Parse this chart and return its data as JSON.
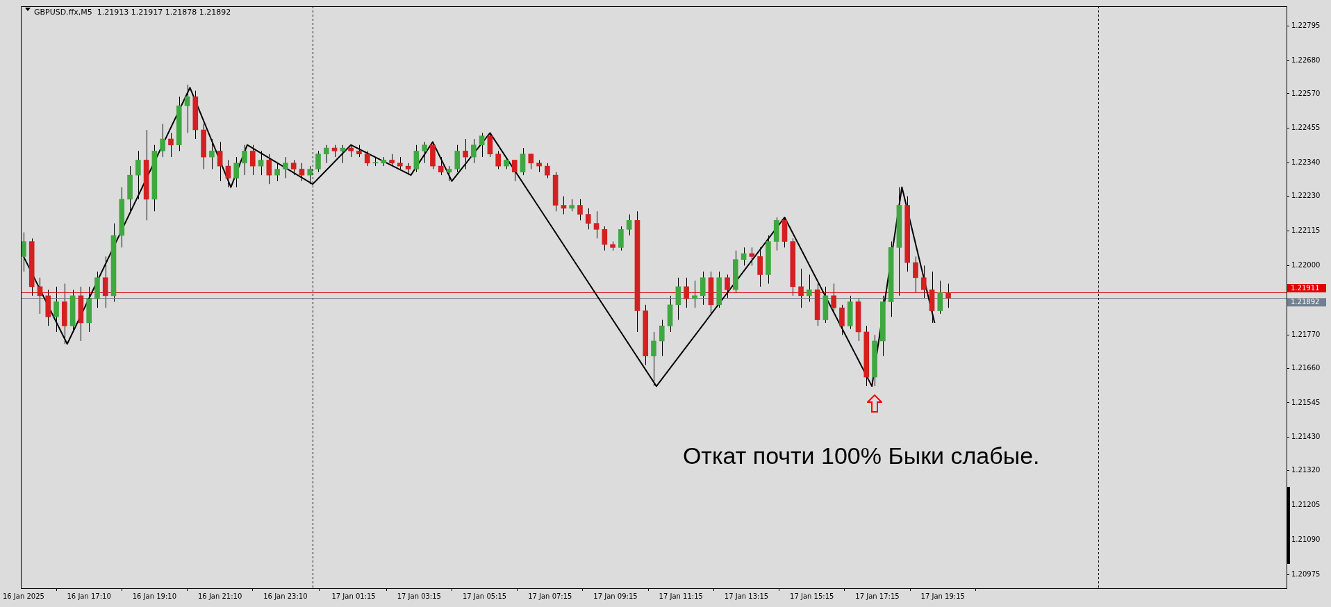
{
  "chart_data": {
    "type": "candlestick",
    "title": "GBPUSD.ffx,M5  1.21913 1.21917 1.21878 1.21892",
    "annotations": [
      "Откат почти 100% Быки слабые."
    ],
    "x": [
      "2025-01-16T15:10",
      "2025-01-16T15:25",
      "2025-01-16T15:40",
      "2025-01-16T15:55",
      "2025-01-16T16:10",
      "2025-01-16T16:25",
      "2025-01-16T16:40",
      "2025-01-16T16:55",
      "2025-01-16T17:10",
      "2025-01-16T17:25",
      "2025-01-16T17:40",
      "2025-01-16T17:55",
      "2025-01-16T18:10",
      "2025-01-16T18:25",
      "2025-01-16T18:40",
      "2025-01-16T18:55",
      "2025-01-16T19:10",
      "2025-01-16T19:25",
      "2025-01-16T19:40",
      "2025-01-16T19:55",
      "2025-01-16T20:10",
      "2025-01-16T20:25",
      "2025-01-16T20:40",
      "2025-01-16T20:55",
      "2025-01-16T21:10",
      "2025-01-16T21:25",
      "2025-01-16T21:40",
      "2025-01-16T21:55",
      "2025-01-16T22:10",
      "2025-01-16T22:25",
      "2025-01-16T22:40",
      "2025-01-16T22:55",
      "2025-01-16T23:10",
      "2025-01-16T23:25",
      "2025-01-16T23:40",
      "2025-01-16T23:55",
      "2025-01-17T00:10",
      "2025-01-17T00:25",
      "2025-01-17T00:40",
      "2025-01-17T00:55",
      "2025-01-17T01:10",
      "2025-01-17T01:25",
      "2025-01-17T01:40",
      "2025-01-17T01:55",
      "2025-01-17T02:10",
      "2025-01-17T02:25",
      "2025-01-17T02:40",
      "2025-01-17T02:55",
      "2025-01-17T03:10",
      "2025-01-17T03:25",
      "2025-01-17T03:40",
      "2025-01-17T03:55",
      "2025-01-17T04:10",
      "2025-01-17T04:25",
      "2025-01-17T04:40",
      "2025-01-17T04:55",
      "2025-01-17T05:10",
      "2025-01-17T05:25",
      "2025-01-17T05:40",
      "2025-01-17T05:55",
      "2025-01-17T06:10",
      "2025-01-17T06:25",
      "2025-01-17T06:40",
      "2025-01-17T06:55",
      "2025-01-17T07:10",
      "2025-01-17T07:25",
      "2025-01-17T07:40",
      "2025-01-17T07:55",
      "2025-01-17T08:10",
      "2025-01-17T08:25",
      "2025-01-17T08:40",
      "2025-01-17T08:55",
      "2025-01-17T09:10",
      "2025-01-17T09:25",
      "2025-01-17T09:40",
      "2025-01-17T09:55",
      "2025-01-17T10:10",
      "2025-01-17T10:25",
      "2025-01-17T10:40",
      "2025-01-17T10:55",
      "2025-01-17T11:10",
      "2025-01-17T11:25",
      "2025-01-17T11:40",
      "2025-01-17T11:55",
      "2025-01-17T12:10",
      "2025-01-17T12:25",
      "2025-01-17T12:40",
      "2025-01-17T12:55",
      "2025-01-17T13:10",
      "2025-01-17T13:25",
      "2025-01-17T13:40",
      "2025-01-17T13:55",
      "2025-01-17T14:10",
      "2025-01-17T14:25",
      "2025-01-17T14:40",
      "2025-01-17T14:55",
      "2025-01-17T15:10",
      "2025-01-17T15:25",
      "2025-01-17T15:40",
      "2025-01-17T15:55",
      "2025-01-17T16:10",
      "2025-01-17T16:25",
      "2025-01-17T16:40",
      "2025-01-17T16:55",
      "2025-01-17T17:10",
      "2025-01-17T17:25",
      "2025-01-17T17:40",
      "2025-01-17T17:55",
      "2025-01-17T18:10",
      "2025-01-17T18:25",
      "2025-01-17T18:40",
      "2025-01-17T18:55",
      "2025-01-17T19:10",
      "2025-01-17T19:25"
    ],
    "ohlc": [
      [
        1.2203,
        1.2211,
        1.2198,
        1.2208
      ],
      [
        1.2208,
        1.2209,
        1.219,
        1.2193
      ],
      [
        1.2193,
        1.2196,
        1.2184,
        1.219
      ],
      [
        1.219,
        1.2192,
        1.218,
        1.2183
      ],
      [
        1.2183,
        1.2193,
        1.2178,
        1.2188
      ],
      [
        1.2188,
        1.2194,
        1.2174,
        1.218
      ],
      [
        1.218,
        1.2192,
        1.2178,
        1.219
      ],
      [
        1.219,
        1.2193,
        1.2175,
        1.2181
      ],
      [
        1.2181,
        1.2193,
        1.2178,
        1.2189
      ],
      [
        1.2189,
        1.2198,
        1.2186,
        1.2196
      ],
      [
        1.2196,
        1.2203,
        1.2186,
        1.219
      ],
      [
        1.219,
        1.2214,
        1.2188,
        1.221
      ],
      [
        1.221,
        1.2226,
        1.2206,
        1.2222
      ],
      [
        1.2222,
        1.2233,
        1.2218,
        1.223
      ],
      [
        1.223,
        1.2238,
        1.2222,
        1.2235
      ],
      [
        1.2235,
        1.2245,
        1.2215,
        1.2222
      ],
      [
        1.2222,
        1.224,
        1.2218,
        1.2238
      ],
      [
        1.2238,
        1.2247,
        1.2236,
        1.2242
      ],
      [
        1.2242,
        1.2244,
        1.2236,
        1.224
      ],
      [
        1.224,
        1.2256,
        1.2238,
        1.2253
      ],
      [
        1.2253,
        1.226,
        1.2244,
        1.2256
      ],
      [
        1.2256,
        1.2258,
        1.2242,
        1.2245
      ],
      [
        1.2245,
        1.2247,
        1.2232,
        1.2236
      ],
      [
        1.2236,
        1.2242,
        1.2232,
        1.2238
      ],
      [
        1.2238,
        1.2241,
        1.2228,
        1.2233
      ],
      [
        1.2233,
        1.2235,
        1.2226,
        1.2229
      ],
      [
        1.2229,
        1.2236,
        1.2226,
        1.2234
      ],
      [
        1.2234,
        1.224,
        1.223,
        1.2238
      ],
      [
        1.2238,
        1.224,
        1.223,
        1.2233
      ],
      [
        1.2233,
        1.2238,
        1.223,
        1.2235
      ],
      [
        1.2235,
        1.2237,
        1.2227,
        1.223
      ],
      [
        1.223,
        1.2234,
        1.2228,
        1.2232
      ],
      [
        1.2232,
        1.2236,
        1.2229,
        1.2234
      ],
      [
        1.2234,
        1.2235,
        1.223,
        1.2232
      ],
      [
        1.2232,
        1.2234,
        1.2228,
        1.223
      ],
      [
        1.223,
        1.2233,
        1.2227,
        1.2232
      ],
      [
        1.2232,
        1.2238,
        1.2231,
        1.2237
      ],
      [
        1.2237,
        1.224,
        1.2234,
        1.2239
      ],
      [
        1.2239,
        1.224,
        1.2236,
        1.2238
      ],
      [
        1.2238,
        1.224,
        1.2234,
        1.2239
      ],
      [
        1.2239,
        1.224,
        1.2236,
        1.2238
      ],
      [
        1.2238,
        1.224,
        1.2236,
        1.2237
      ],
      [
        1.2237,
        1.2238,
        1.2233,
        1.2234
      ],
      [
        1.2234,
        1.2236,
        1.2233,
        1.2234
      ],
      [
        1.2234,
        1.2236,
        1.2233,
        1.2235
      ],
      [
        1.2235,
        1.2237,
        1.2233,
        1.2234
      ],
      [
        1.2234,
        1.2236,
        1.2232,
        1.2233
      ],
      [
        1.2233,
        1.2234,
        1.223,
        1.2232
      ],
      [
        1.2232,
        1.224,
        1.2231,
        1.2238
      ],
      [
        1.2238,
        1.2241,
        1.2234,
        1.224
      ],
      [
        1.224,
        1.2241,
        1.2232,
        1.2233
      ],
      [
        1.2233,
        1.2236,
        1.223,
        1.2231
      ],
      [
        1.2231,
        1.2233,
        1.2228,
        1.2232
      ],
      [
        1.2232,
        1.224,
        1.2231,
        1.2238
      ],
      [
        1.2238,
        1.2242,
        1.2232,
        1.2236
      ],
      [
        1.2236,
        1.2242,
        1.2234,
        1.224
      ],
      [
        1.224,
        1.2244,
        1.2236,
        1.2243
      ],
      [
        1.2243,
        1.2244,
        1.2236,
        1.2237
      ],
      [
        1.2237,
        1.2238,
        1.2232,
        1.2233
      ],
      [
        1.2233,
        1.2236,
        1.2232,
        1.2235
      ],
      [
        1.2235,
        1.2235,
        1.2228,
        1.2231
      ],
      [
        1.2231,
        1.2239,
        1.223,
        1.2237
      ],
      [
        1.2237,
        1.2237,
        1.2232,
        1.2234
      ],
      [
        1.2234,
        1.2235,
        1.2231,
        1.2233
      ],
      [
        1.2233,
        1.2234,
        1.2229,
        1.223
      ],
      [
        1.223,
        1.2231,
        1.2218,
        1.222
      ],
      [
        1.222,
        1.2223,
        1.2217,
        1.2219
      ],
      [
        1.2219,
        1.2222,
        1.2218,
        1.222
      ],
      [
        1.222,
        1.2222,
        1.2215,
        1.2217
      ],
      [
        1.2217,
        1.2219,
        1.2212,
        1.2214
      ],
      [
        1.2214,
        1.2218,
        1.2209,
        1.2212
      ],
      [
        1.2212,
        1.2213,
        1.2205,
        1.2207
      ],
      [
        1.2207,
        1.2208,
        1.2205,
        1.2206
      ],
      [
        1.2206,
        1.2213,
        1.2205,
        1.2212
      ],
      [
        1.2212,
        1.2217,
        1.221,
        1.2215
      ],
      [
        1.2215,
        1.2218,
        1.2178,
        1.2185
      ],
      [
        1.2185,
        1.2187,
        1.2167,
        1.217
      ],
      [
        1.217,
        1.2178,
        1.216,
        1.2175
      ],
      [
        1.2175,
        1.2182,
        1.217,
        1.218
      ],
      [
        1.218,
        1.219,
        1.2178,
        1.2187
      ],
      [
        1.2187,
        1.2196,
        1.2182,
        1.2193
      ],
      [
        1.2193,
        1.2196,
        1.2186,
        1.2189
      ],
      [
        1.2189,
        1.2195,
        1.2186,
        1.219
      ],
      [
        1.219,
        1.2198,
        1.2187,
        1.2196
      ],
      [
        1.2196,
        1.2198,
        1.2184,
        1.2187
      ],
      [
        1.2187,
        1.2198,
        1.2186,
        1.2196
      ],
      [
        1.2196,
        1.2197,
        1.2189,
        1.2192
      ],
      [
        1.2192,
        1.2205,
        1.2191,
        1.2202
      ],
      [
        1.2202,
        1.2206,
        1.22,
        1.2204
      ],
      [
        1.2204,
        1.2206,
        1.22,
        1.2203
      ],
      [
        1.2203,
        1.2206,
        1.2193,
        1.2197
      ],
      [
        1.2197,
        1.221,
        1.2194,
        1.2208
      ],
      [
        1.2208,
        1.2216,
        1.2205,
        1.2215
      ],
      [
        1.2215,
        1.2216,
        1.2206,
        1.2208
      ],
      [
        1.2208,
        1.2209,
        1.219,
        1.2193
      ],
      [
        1.2193,
        1.2199,
        1.2186,
        1.219
      ],
      [
        1.219,
        1.2197,
        1.2188,
        1.2192
      ],
      [
        1.2192,
        1.2194,
        1.218,
        1.2182
      ],
      [
        1.2182,
        1.2193,
        1.2181,
        1.219
      ],
      [
        1.219,
        1.2194,
        1.2185,
        1.2186
      ],
      [
        1.2186,
        1.2187,
        1.2177,
        1.218
      ],
      [
        1.218,
        1.219,
        1.2179,
        1.2188
      ],
      [
        1.2188,
        1.2189,
        1.2175,
        1.2178
      ],
      [
        1.2178,
        1.218,
        1.216,
        1.2163
      ],
      [
        1.2163,
        1.2177,
        1.216,
        1.2175
      ],
      [
        1.2175,
        1.219,
        1.217,
        1.2188
      ],
      [
        1.2188,
        1.2208,
        1.2183,
        1.2206
      ],
      [
        1.2206,
        1.2226,
        1.219,
        1.222
      ],
      [
        1.222,
        1.2223,
        1.2198,
        1.2201
      ],
      [
        1.2201,
        1.2203,
        1.2191,
        1.2196
      ],
      [
        1.2196,
        1.22,
        1.2189,
        1.2192
      ],
      [
        1.2192,
        1.2198,
        1.2181,
        1.2185
      ],
      [
        1.2185,
        1.2195,
        1.2184,
        1.2191
      ],
      [
        1.2191,
        1.2194,
        1.2186,
        1.21892
      ]
    ],
    "colors": [
      "#40a840",
      "#d42020",
      "#d42020",
      "#d42020",
      "#40a840",
      "#d42020",
      "#40a840",
      "#d42020",
      "#40a840",
      "#40a840",
      "#d42020",
      "#40a840",
      "#40a840",
      "#40a840",
      "#40a840",
      "#d42020",
      "#40a840",
      "#40a840",
      "#d42020",
      "#40a840",
      "#40a840",
      "#d42020",
      "#d42020",
      "#40a840",
      "#d42020",
      "#d42020",
      "#40a840",
      "#40a840",
      "#d42020",
      "#40a840",
      "#d42020",
      "#40a840",
      "#40a840",
      "#d42020",
      "#d42020",
      "#40a840",
      "#40a840",
      "#40a840",
      "#d42020",
      "#40a840",
      "#d42020",
      "#d42020",
      "#d42020",
      "#40a840",
      "#40a840",
      "#d42020",
      "#d42020",
      "#d42020",
      "#40a840",
      "#40a840",
      "#d42020",
      "#d42020",
      "#40a840",
      "#40a840",
      "#d42020",
      "#40a840",
      "#40a840",
      "#d42020",
      "#d42020",
      "#40a840",
      "#d42020",
      "#40a840",
      "#d42020",
      "#d42020",
      "#d42020",
      "#d42020",
      "#d42020",
      "#40a840",
      "#d42020",
      "#d42020",
      "#d42020",
      "#d42020",
      "#d42020",
      "#40a840",
      "#40a840",
      "#d42020",
      "#d42020",
      "#40a840",
      "#40a840",
      "#40a840",
      "#40a840",
      "#d42020",
      "#40a840",
      "#40a840",
      "#d42020",
      "#40a840",
      "#d42020",
      "#40a840",
      "#40a840",
      "#d42020",
      "#d42020",
      "#40a840",
      "#40a840",
      "#d42020",
      "#d42020",
      "#d42020",
      "#40a840",
      "#d42020",
      "#40a840",
      "#d42020",
      "#d42020",
      "#40a840",
      "#d42020",
      "#d42020",
      "#40a840",
      "#40a840",
      "#40a840",
      "#40a840",
      "#d42020",
      "#d42020",
      "#d42020",
      "#d42020",
      "#40a840",
      "#d42020"
    ],
    "series": [
      {
        "type": "line",
        "color": "#000000",
        "x": [
          "2025-01-16T15:10",
          "2025-01-16T16:30",
          "2025-01-16T20:15",
          "2025-01-16T21:30",
          "2025-01-16T22:00",
          "2025-01-17T00:00",
          "2025-01-17T01:10",
          "2025-01-17T03:00",
          "2025-01-17T03:40",
          "2025-01-17T04:15",
          "2025-01-17T05:25",
          "2025-01-17T10:30",
          "2025-01-17T14:25",
          "2025-01-17T17:05",
          "2025-01-17T18:00",
          "2025-01-17T19:00"
        ],
        "values": [
          1.2203,
          1.2174,
          1.2259,
          1.2226,
          1.224,
          1.2227,
          1.224,
          1.223,
          1.2241,
          1.2228,
          1.2244,
          1.216,
          1.2216,
          1.216,
          1.2226,
          1.2181
        ]
      }
    ],
    "xlim": [
      "2025-01-16T15:05",
      "2025-01-18T05:45"
    ],
    "xticks": [
      {
        "value": "2025-01-16T15:10",
        "label": "16 Jan 2025"
      },
      {
        "value": "2025-01-16T17:10",
        "label": "16 Jan 17:10"
      },
      {
        "value": "2025-01-16T19:10",
        "label": "16 Jan 19:10"
      },
      {
        "value": "2025-01-16T21:10",
        "label": "16 Jan 21:10"
      },
      {
        "value": "2025-01-16T23:10",
        "label": "16 Jan 23:10"
      },
      {
        "value": "2025-01-17T01:15",
        "label": "17 Jan 01:15"
      },
      {
        "value": "2025-01-17T03:15",
        "label": "17 Jan 03:15"
      },
      {
        "value": "2025-01-17T05:15",
        "label": "17 Jan 05:15"
      },
      {
        "value": "2025-01-17T07:15",
        "label": "17 Jan 07:15"
      },
      {
        "value": "2025-01-17T09:15",
        "label": "17 Jan 09:15"
      },
      {
        "value": "2025-01-17T11:15",
        "label": "17 Jan 11:15"
      },
      {
        "value": "2025-01-17T13:15",
        "label": "17 Jan 13:15"
      },
      {
        "value": "2025-01-17T15:15",
        "label": "17 Jan 15:15"
      },
      {
        "value": "2025-01-17T17:15",
        "label": "17 Jan 17:15"
      },
      {
        "value": "2025-01-17T19:15",
        "label": "17 Jan 19:15"
      }
    ],
    "ylim": [
      1.2093,
      1.2286
    ],
    "yticks": [
      1.20975,
      {
        "value": 1.2109,
        "label": "1.21090"
      },
      1.21205,
      {
        "value": 1.2132,
        "label": "1.21320"
      },
      {
        "value": 1.2143,
        "label": "1.21430"
      },
      1.21545,
      {
        "value": 1.2166,
        "label": "1.21660"
      },
      {
        "value": 1.2177,
        "label": "1.21770"
      },
      {
        "value": 1.22,
        "label": "1.22000"
      },
      1.22115,
      {
        "value": 1.2223,
        "label": "1.22230"
      },
      {
        "value": 1.2234,
        "label": "1.22340"
      },
      1.22455,
      {
        "value": 1.2257,
        "label": "1.22570"
      },
      {
        "value": 1.2268,
        "label": "1.22680"
      },
      1.22795
    ],
    "ref_lines": [
      {
        "axis": "y",
        "value": 1.21911,
        "label": "1.21911",
        "color": "#e00000"
      },
      {
        "axis": "y",
        "value": 1.21892,
        "label": "1.21892",
        "color": "#708090"
      },
      {
        "axis": "x",
        "value": "2025-01-17T00:00",
        "color": "#000000",
        "line_style": "dashed"
      },
      {
        "axis": "x",
        "value": "2025-01-18T00:00",
        "color": "#000000",
        "line_style": "dashed"
      }
    ],
    "grid": false,
    "legend": false
  }
}
